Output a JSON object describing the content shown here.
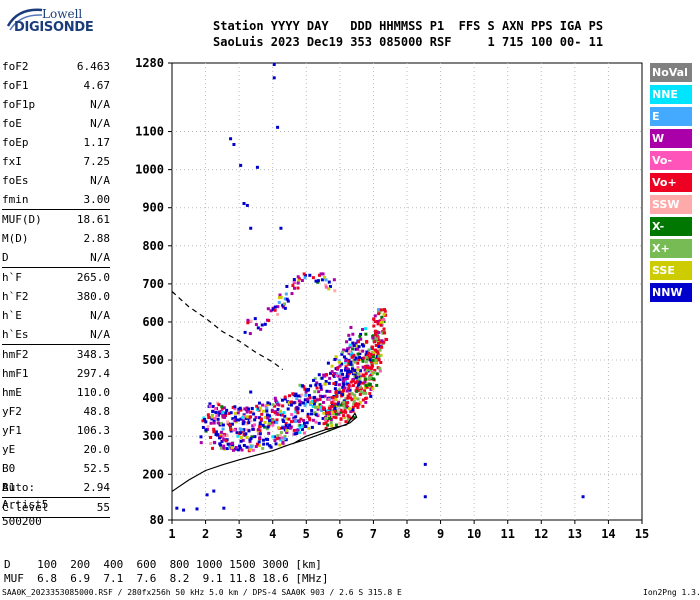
{
  "logo": {
    "line1": "Lowell",
    "line2": "DIGISONDE"
  },
  "header": {
    "line1": "Station YYYY DAY   DDD HHMMSS P1  FFS S AXN PPS IGA PS",
    "line2": "SaoLuis 2023 Dec19 353 085000 RSF     1 715 100 00- 11"
  },
  "params": [
    {
      "k": "foF2",
      "v": "6.463"
    },
    {
      "k": "foF1",
      "v": "4.67"
    },
    {
      "k": "foF1p",
      "v": "N/A"
    },
    {
      "k": "foE",
      "v": "N/A"
    },
    {
      "k": "foEp",
      "v": "1.17"
    },
    {
      "k": "fxI",
      "v": "7.25"
    },
    {
      "k": "foEs",
      "v": "N/A"
    },
    {
      "k": "fmin",
      "v": "3.00",
      "sep": true
    },
    {
      "k": "MUF(D)",
      "v": "18.61"
    },
    {
      "k": "M(D)",
      "v": "2.88"
    },
    {
      "k": "D",
      "v": "N/A",
      "sep": true
    },
    {
      "k": "h`F",
      "v": "265.0"
    },
    {
      "k": "h`F2",
      "v": "380.0"
    },
    {
      "k": "h`E",
      "v": "N/A"
    },
    {
      "k": "h`Es",
      "v": "N/A",
      "sep": true
    },
    {
      "k": "hmF2",
      "v": "348.3"
    },
    {
      "k": "hmF1",
      "v": "297.4"
    },
    {
      "k": "hmE",
      "v": "110.0"
    },
    {
      "k": "yF2",
      "v": "48.8"
    },
    {
      "k": "yF1",
      "v": "106.3"
    },
    {
      "k": "yE",
      "v": "20.0"
    },
    {
      "k": "B0",
      "v": "52.5"
    },
    {
      "k": "B1",
      "v": "2.94",
      "sep": true
    },
    {
      "k": "C-level",
      "v": "55",
      "sep": true
    }
  ],
  "auto": {
    "l1": "Auto:",
    "l2": "Artist5",
    "l3": "500200"
  },
  "legend": [
    {
      "label": "NoVal",
      "bg": "#808080",
      "fg": "#ffffff"
    },
    {
      "label": "NNE",
      "bg": "#00e5ff",
      "fg": "#ffffff"
    },
    {
      "label": "E",
      "bg": "#44aaff",
      "fg": "#ffffff"
    },
    {
      "label": "W",
      "bg": "#aa00aa",
      "fg": "#ffffff"
    },
    {
      "label": "Vo-",
      "bg": "#ff55bb",
      "fg": "#ffffff"
    },
    {
      "label": "Vo+",
      "bg": "#ee0022",
      "fg": "#ffffff"
    },
    {
      "label": "SSW",
      "bg": "#ffaaaa",
      "fg": "#ffffff"
    },
    {
      "label": "X-",
      "bg": "#007700",
      "fg": "#ffffff"
    },
    {
      "label": "X+",
      "bg": "#77bb55",
      "fg": "#ffffff"
    },
    {
      "label": "SSE",
      "bg": "#cccc00",
      "fg": "#ffffff"
    },
    {
      "label": "NNW",
      "bg": "#0000cc",
      "fg": "#ffffff"
    }
  ],
  "muf_table": {
    "row1": "D    100  200  400  600  800 1000 1500 3000 [km]",
    "row2": "MUF  6.8  6.9  7.1  7.6  8.2  9.1 11.8 18.6 [MHz]"
  },
  "footer": {
    "left": "SAA0K_2023353085000.RSF / 280fx256h 50 kHz 5.0 km / DPS-4 SAA0K 903 / 2.6 S 315.8 E",
    "right": "Ion2Png 1.3.17"
  },
  "chart_data": {
    "type": "scatter",
    "xlim": [
      1,
      15
    ],
    "ylim": [
      80,
      1280
    ],
    "x_ticks": [
      "1",
      "2",
      "3",
      "4",
      "5",
      "6",
      "7",
      "8",
      "9",
      "10",
      "11",
      "12",
      "13",
      "14",
      "15"
    ],
    "y_ticks": [
      {
        "v": 80,
        "label": "80"
      },
      {
        "v": 200,
        "label": "200"
      },
      {
        "v": 300,
        "label": "300"
      },
      {
        "v": 400,
        "label": "400"
      },
      {
        "v": 500,
        "label": "500"
      },
      {
        "v": 600,
        "label": "600"
      },
      {
        "v": 700,
        "label": "700"
      },
      {
        "v": 800,
        "label": "800"
      },
      {
        "v": 900,
        "label": "900"
      },
      {
        "v": 1000,
        "label": "1000"
      },
      {
        "v": 1100,
        "label": "1100"
      },
      {
        "v": 1280,
        "label": "1280"
      }
    ],
    "grid": true,
    "profile_curve": [
      [
        1,
        155
      ],
      [
        1.5,
        185
      ],
      [
        2,
        210
      ],
      [
        2.5,
        225
      ],
      [
        3,
        238
      ],
      [
        3.5,
        250
      ],
      [
        4,
        262
      ],
      [
        4.5,
        278
      ],
      [
        5,
        292
      ],
      [
        5.5,
        308
      ],
      [
        6,
        325
      ],
      [
        6.3,
        335
      ],
      [
        6.5,
        350
      ],
      [
        6.45,
        360
      ],
      [
        6.2,
        330
      ],
      [
        5.6,
        318
      ],
      [
        5,
        300
      ],
      [
        4.6,
        280
      ]
    ],
    "dashed_curve": [
      [
        1,
        680
      ],
      [
        1.5,
        640
      ],
      [
        2,
        610
      ],
      [
        2.5,
        575
      ],
      [
        3,
        550
      ],
      [
        3.5,
        520
      ],
      [
        4,
        495
      ],
      [
        4.3,
        475
      ]
    ],
    "trace_O": [
      [
        2,
        297
      ],
      [
        2.5,
        292
      ],
      [
        3,
        288
      ],
      [
        3.5,
        292
      ],
      [
        4,
        300
      ],
      [
        4.5,
        318
      ],
      [
        5,
        345
      ],
      [
        5.5,
        375
      ],
      [
        6,
        410
      ],
      [
        6.3,
        450
      ],
      [
        6.5,
        500
      ]
    ],
    "trace_X": [
      [
        5.5,
        330
      ],
      [
        6,
        355
      ],
      [
        6.5,
        390
      ],
      [
        6.8,
        430
      ],
      [
        7,
        480
      ],
      [
        7.1,
        540
      ],
      [
        7.2,
        580
      ]
    ],
    "upper_trace": [
      [
        3.2,
        575
      ],
      [
        3.6,
        590
      ],
      [
        4,
        620
      ],
      [
        4.3,
        650
      ],
      [
        4.6,
        690
      ],
      [
        5,
        720
      ],
      [
        5.5,
        700
      ],
      [
        5.8,
        690
      ]
    ],
    "sporadic": [
      [
        1.1,
        115
      ],
      [
        1.3,
        110
      ],
      [
        1.7,
        113
      ],
      [
        2,
        150
      ],
      [
        2.2,
        160
      ],
      [
        2.5,
        115
      ],
      [
        2.7,
        1085
      ],
      [
        2.8,
        1070
      ],
      [
        3,
        1015
      ],
      [
        3.1,
        915
      ],
      [
        3.2,
        910
      ],
      [
        3.3,
        850
      ],
      [
        3.5,
        1010
      ],
      [
        4,
        1280
      ],
      [
        4.1,
        1115
      ],
      [
        4,
        1245
      ],
      [
        8.5,
        230
      ],
      [
        8.5,
        145
      ],
      [
        13.2,
        145
      ],
      [
        3.3,
        420
      ],
      [
        4.2,
        850
      ]
    ]
  }
}
